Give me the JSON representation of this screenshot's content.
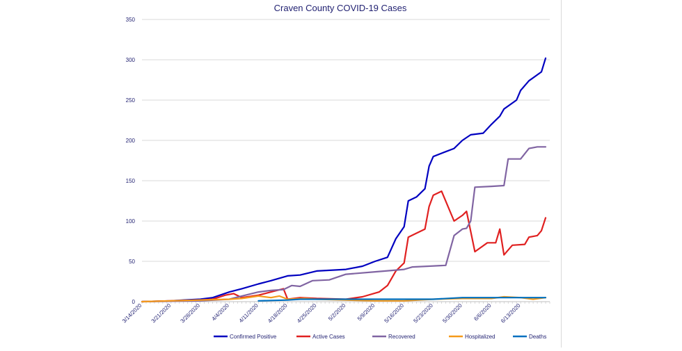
{
  "chart_data": {
    "type": "line",
    "title": "Craven County COVID-19 Cases",
    "xlabel": "",
    "ylabel": "",
    "ylim": [
      0,
      350
    ],
    "yticks": [
      0,
      50,
      100,
      150,
      200,
      250,
      300,
      350
    ],
    "x_tick_labels": [
      "3/14/2020",
      "3/21/2020",
      "3/28/2020",
      "4/4/2020",
      "4/11/2020",
      "4/18/2020",
      "4/25/2020",
      "5/2/2020",
      "5/9/2020",
      "5/16/2020",
      "5/23/2020",
      "5/30/2020",
      "6/6/2020",
      "6/13/2020"
    ],
    "x_start": "3/14/2020",
    "x_end": "6/20/2020",
    "grid": "horizontal",
    "legend_position": "bottom",
    "series": [
      {
        "name": "Confirmed Positive",
        "color": "#0000c0",
        "points": [
          [
            "3/14/2020",
            0
          ],
          [
            "3/21/2020",
            1
          ],
          [
            "3/24/2020",
            2
          ],
          [
            "3/28/2020",
            3
          ],
          [
            "3/31/2020",
            5
          ],
          [
            "4/4/2020",
            12
          ],
          [
            "4/7/2020",
            16
          ],
          [
            "4/11/2020",
            22
          ],
          [
            "4/14/2020",
            26
          ],
          [
            "4/18/2020",
            32
          ],
          [
            "4/21/2020",
            33
          ],
          [
            "4/25/2020",
            38
          ],
          [
            "5/2/2020",
            40
          ],
          [
            "5/6/2020",
            44
          ],
          [
            "5/9/2020",
            50
          ],
          [
            "5/12/2020",
            55
          ],
          [
            "5/14/2020",
            78
          ],
          [
            "5/16/2020",
            93
          ],
          [
            "5/17/2020",
            125
          ],
          [
            "5/19/2020",
            130
          ],
          [
            "5/21/2020",
            140
          ],
          [
            "5/22/2020",
            168
          ],
          [
            "5/23/2020",
            180
          ],
          [
            "5/26/2020",
            186
          ],
          [
            "5/28/2020",
            190
          ],
          [
            "5/30/2020",
            200
          ],
          [
            "6/1/2020",
            207
          ],
          [
            "6/4/2020",
            209
          ],
          [
            "6/6/2020",
            220
          ],
          [
            "6/8/2020",
            230
          ],
          [
            "6/9/2020",
            239
          ],
          [
            "6/12/2020",
            250
          ],
          [
            "6/13/2020",
            262
          ],
          [
            "6/15/2020",
            274
          ],
          [
            "6/18/2020",
            285
          ],
          [
            "6/19/2020",
            302
          ]
        ]
      },
      {
        "name": "Active Cases",
        "color": "#e02020",
        "points": [
          [
            "3/14/2020",
            0
          ],
          [
            "3/21/2020",
            1
          ],
          [
            "3/28/2020",
            2
          ],
          [
            "3/31/2020",
            3
          ],
          [
            "4/3/2020",
            8
          ],
          [
            "4/5/2020",
            10
          ],
          [
            "4/7/2020",
            5
          ],
          [
            "4/11/2020",
            8
          ],
          [
            "4/14/2020",
            12
          ],
          [
            "4/17/2020",
            16
          ],
          [
            "4/18/2020",
            3
          ],
          [
            "4/21/2020",
            5
          ],
          [
            "4/25/2020",
            4
          ],
          [
            "5/2/2020",
            3
          ],
          [
            "5/6/2020",
            6
          ],
          [
            "5/10/2020",
            12
          ],
          [
            "5/12/2020",
            20
          ],
          [
            "5/14/2020",
            38
          ],
          [
            "5/16/2020",
            48
          ],
          [
            "5/17/2020",
            80
          ],
          [
            "5/19/2020",
            85
          ],
          [
            "5/21/2020",
            90
          ],
          [
            "5/22/2020",
            118
          ],
          [
            "5/23/2020",
            132
          ],
          [
            "5/25/2020",
            137
          ],
          [
            "5/28/2020",
            100
          ],
          [
            "5/30/2020",
            107
          ],
          [
            "5/31/2020",
            112
          ],
          [
            "6/2/2020",
            62
          ],
          [
            "6/5/2020",
            73
          ],
          [
            "6/7/2020",
            73
          ],
          [
            "6/8/2020",
            90
          ],
          [
            "6/9/2020",
            58
          ],
          [
            "6/11/2020",
            70
          ],
          [
            "6/14/2020",
            71
          ],
          [
            "6/15/2020",
            80
          ],
          [
            "6/17/2020",
            82
          ],
          [
            "6/18/2020",
            88
          ],
          [
            "6/19/2020",
            104
          ]
        ]
      },
      {
        "name": "Recovered",
        "color": "#8064a2",
        "points": [
          [
            "3/14/2020",
            0
          ],
          [
            "3/28/2020",
            1
          ],
          [
            "4/4/2020",
            3
          ],
          [
            "4/7/2020",
            7
          ],
          [
            "4/11/2020",
            12
          ],
          [
            "4/14/2020",
            14
          ],
          [
            "4/17/2020",
            15
          ],
          [
            "4/19/2020",
            20
          ],
          [
            "4/21/2020",
            19
          ],
          [
            "4/24/2020",
            26
          ],
          [
            "4/28/2020",
            27
          ],
          [
            "5/2/2020",
            34
          ],
          [
            "5/9/2020",
            37
          ],
          [
            "5/16/2020",
            40
          ],
          [
            "5/18/2020",
            43
          ],
          [
            "5/26/2020",
            45
          ],
          [
            "5/28/2020",
            82
          ],
          [
            "5/30/2020",
            90
          ],
          [
            "5/31/2020",
            91
          ],
          [
            "6/1/2020",
            100
          ],
          [
            "6/2/2020",
            142
          ],
          [
            "6/6/2020",
            143
          ],
          [
            "6/9/2020",
            144
          ],
          [
            "6/10/2020",
            177
          ],
          [
            "6/13/2020",
            177
          ],
          [
            "6/15/2020",
            190
          ],
          [
            "6/17/2020",
            192
          ],
          [
            "6/19/2020",
            192
          ]
        ]
      },
      {
        "name": "Hospitalized",
        "color": "#f59a1a",
        "points": [
          [
            "3/14/2020",
            0
          ],
          [
            "4/4/2020",
            3
          ],
          [
            "4/7/2020",
            4
          ],
          [
            "4/11/2020",
            7
          ],
          [
            "4/14/2020",
            5
          ],
          [
            "4/16/2020",
            7
          ],
          [
            "4/18/2020",
            3
          ],
          [
            "4/22/2020",
            4
          ],
          [
            "4/25/2020",
            3
          ],
          [
            "5/2/2020",
            2
          ],
          [
            "5/9/2020",
            1
          ],
          [
            "5/16/2020",
            1
          ],
          [
            "5/23/2020",
            3
          ],
          [
            "5/30/2020",
            4
          ],
          [
            "6/6/2020",
            4
          ],
          [
            "6/9/2020",
            6
          ],
          [
            "6/13/2020",
            5
          ],
          [
            "6/16/2020",
            3
          ],
          [
            "6/19/2020",
            5
          ]
        ]
      },
      {
        "name": "Deaths",
        "color": "#0070c0",
        "points": [
          [
            "4/11/2020",
            1
          ],
          [
            "4/18/2020",
            2
          ],
          [
            "4/21/2020",
            3
          ],
          [
            "5/23/2020",
            3
          ],
          [
            "5/30/2020",
            5
          ],
          [
            "6/19/2020",
            5
          ]
        ]
      }
    ]
  }
}
